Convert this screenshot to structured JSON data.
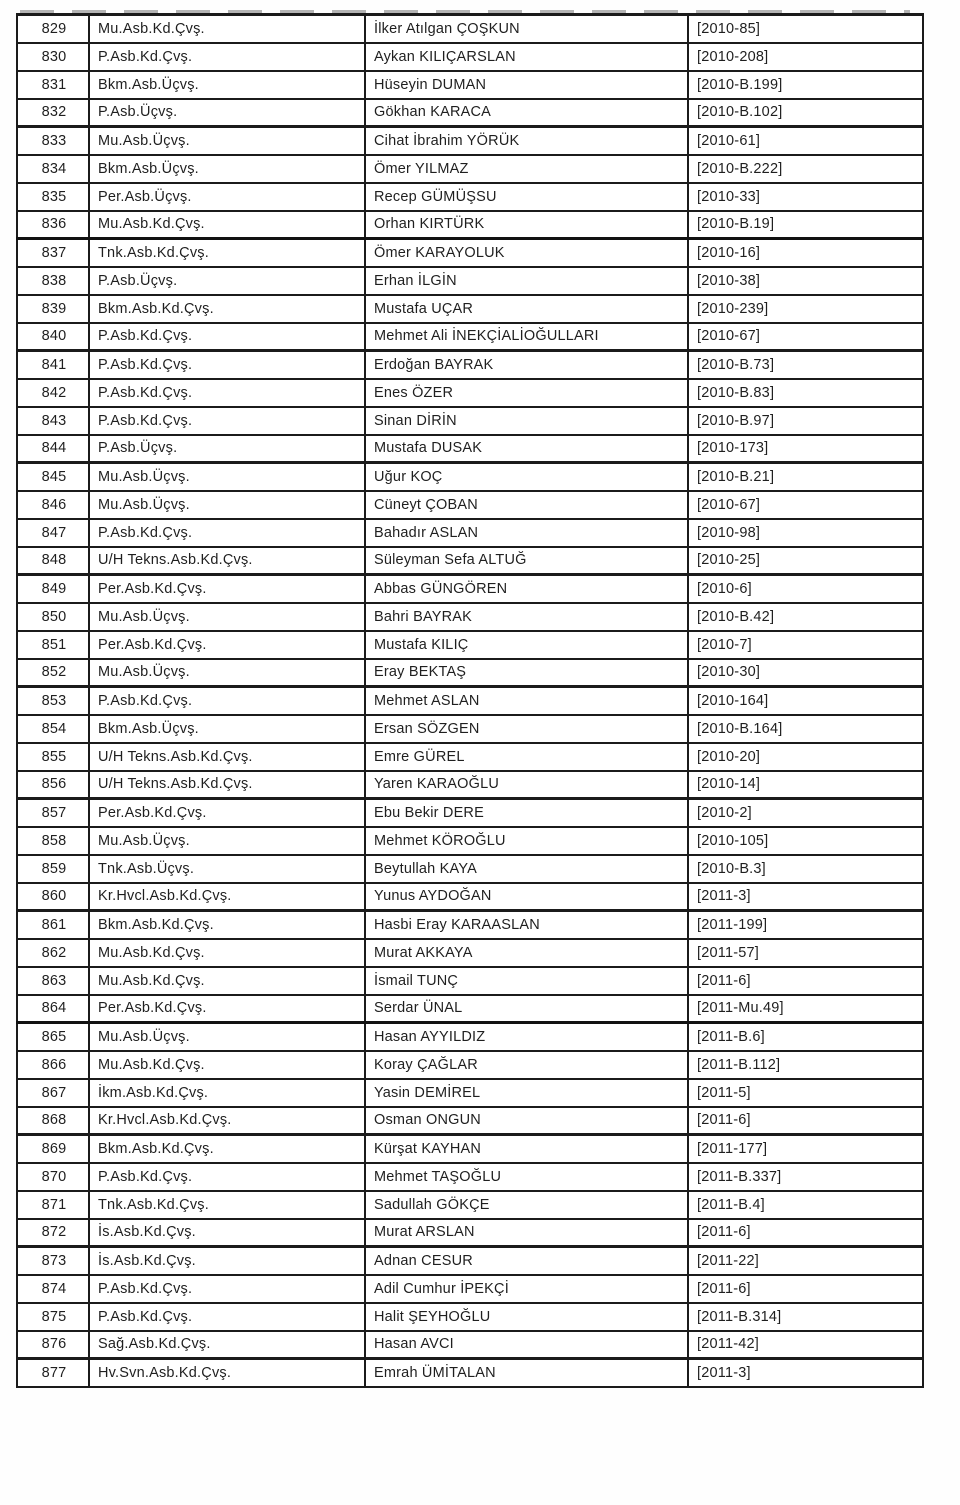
{
  "page": {
    "background_color": "#fefefe",
    "ink_color": "#1f1f1f",
    "border_color": "#1b1b1b"
  },
  "table": {
    "rows": [
      {
        "no": "829",
        "rank": "Mu.Asb.Kd.Çvş.",
        "name": "İlker Atılgan ÇOŞKUN",
        "code": "[2010-85]"
      },
      {
        "no": "830",
        "rank": "P.Asb.Kd.Çvş.",
        "name": "Aykan KILIÇARSLAN",
        "code": "[2010-208]"
      },
      {
        "no": "831",
        "rank": "Bkm.Asb.Üçvş.",
        "name": "Hüseyin DUMAN",
        "code": "[2010-B.199]"
      },
      {
        "no": "832",
        "rank": "P.Asb.Üçvş.",
        "name": "Gökhan KARACA",
        "code": "[2010-B.102]"
      },
      {
        "no": "833",
        "rank": "Mu.Asb.Üçvş.",
        "name": "Cihat İbrahim YÖRÜK",
        "code": "[2010-61]"
      },
      {
        "no": "834",
        "rank": "Bkm.Asb.Üçvş.",
        "name": "Ömer YILMAZ",
        "code": "[2010-B.222]"
      },
      {
        "no": "835",
        "rank": "Per.Asb.Üçvş.",
        "name": "Recep GÜMÜŞSU",
        "code": "[2010-33]"
      },
      {
        "no": "836",
        "rank": "Mu.Asb.Kd.Çvş.",
        "name": "Orhan KIRTÜRK",
        "code": "[2010-B.19]"
      },
      {
        "no": "837",
        "rank": "Tnk.Asb.Kd.Çvş.",
        "name": "Ömer KARAYOLUK",
        "code": "[2010-16]"
      },
      {
        "no": "838",
        "rank": "P.Asb.Üçvş.",
        "name": "Erhan İLGİN",
        "code": "[2010-38]"
      },
      {
        "no": "839",
        "rank": "Bkm.Asb.Kd.Çvş.",
        "name": "Mustafa UÇAR",
        "code": "[2010-239]"
      },
      {
        "no": "840",
        "rank": "P.Asb.Kd.Çvş.",
        "name": "Mehmet Ali İNEKÇİALİOĞULLARI",
        "code": "[2010-67]"
      },
      {
        "no": "841",
        "rank": "P.Asb.Kd.Çvş.",
        "name": "Erdoğan BAYRAK",
        "code": "[2010-B.73]"
      },
      {
        "no": "842",
        "rank": "P.Asb.Kd.Çvş.",
        "name": "Enes ÖZER",
        "code": "[2010-B.83]"
      },
      {
        "no": "843",
        "rank": "P.Asb.Kd.Çvş.",
        "name": "Sinan DİRİN",
        "code": "[2010-B.97]"
      },
      {
        "no": "844",
        "rank": "P.Asb.Üçvş.",
        "name": "Mustafa DUSAK",
        "code": "[2010-173]"
      },
      {
        "no": "845",
        "rank": "Mu.Asb.Üçvş.",
        "name": "Uğur KOÇ",
        "code": "[2010-B.21]"
      },
      {
        "no": "846",
        "rank": "Mu.Asb.Üçvş.",
        "name": "Cüneyt ÇOBAN",
        "code": "[2010-67]"
      },
      {
        "no": "847",
        "rank": "P.Asb.Kd.Çvş.",
        "name": "Bahadır ASLAN",
        "code": "[2010-98]"
      },
      {
        "no": "848",
        "rank": "U/H Tekns.Asb.Kd.Çvş.",
        "name": "Süleyman Sefa ALTUĞ",
        "code": "[2010-25]"
      },
      {
        "no": "849",
        "rank": "Per.Asb.Kd.Çvş.",
        "name": "Abbas GÜNGÖREN",
        "code": "[2010-6]"
      },
      {
        "no": "850",
        "rank": "Mu.Asb.Üçvş.",
        "name": "Bahri BAYRAK",
        "code": "[2010-B.42]"
      },
      {
        "no": "851",
        "rank": "Per.Asb.Kd.Çvş.",
        "name": "Mustafa KILIÇ",
        "code": "[2010-7]"
      },
      {
        "no": "852",
        "rank": "Mu.Asb.Üçvş.",
        "name": "Eray BEKTAŞ",
        "code": "[2010-30]"
      },
      {
        "no": "853",
        "rank": "P.Asb.Kd.Çvş.",
        "name": "Mehmet ASLAN",
        "code": "[2010-164]"
      },
      {
        "no": "854",
        "rank": "Bkm.Asb.Üçvş.",
        "name": "Ersan SÖZGEN",
        "code": "[2010-B.164]"
      },
      {
        "no": "855",
        "rank": "U/H Tekns.Asb.Kd.Çvş.",
        "name": "Emre GÜREL",
        "code": "[2010-20]"
      },
      {
        "no": "856",
        "rank": "U/H Tekns.Asb.Kd.Çvş.",
        "name": "Yaren KARAOĞLU",
        "code": "[2010-14]"
      },
      {
        "no": "857",
        "rank": "Per.Asb.Kd.Çvş.",
        "name": "Ebu Bekir DERE",
        "code": "[2010-2]"
      },
      {
        "no": "858",
        "rank": "Mu.Asb.Üçvş.",
        "name": "Mehmet KÖROĞLU",
        "code": "[2010-105]"
      },
      {
        "no": "859",
        "rank": "Tnk.Asb.Üçvş.",
        "name": "Beytullah KAYA",
        "code": "[2010-B.3]"
      },
      {
        "no": "860",
        "rank": "Kr.Hvcl.Asb.Kd.Çvş.",
        "name": "Yunus AYDOĞAN",
        "code": "[2011-3]"
      },
      {
        "no": "861",
        "rank": "Bkm.Asb.Kd.Çvş.",
        "name": "Hasbi Eray KARAASLAN",
        "code": "[2011-199]"
      },
      {
        "no": "862",
        "rank": "Mu.Asb.Kd.Çvş.",
        "name": "Murat AKKAYA",
        "code": "[2011-57]"
      },
      {
        "no": "863",
        "rank": "Mu.Asb.Kd.Çvş.",
        "name": "İsmail TUNÇ",
        "code": "[2011-6]"
      },
      {
        "no": "864",
        "rank": "Per.Asb.Kd.Çvş.",
        "name": "Serdar ÜNAL",
        "code": "[2011-Mu.49]"
      },
      {
        "no": "865",
        "rank": "Mu.Asb.Üçvş.",
        "name": "Hasan AYYILDIZ",
        "code": "[2011-B.6]"
      },
      {
        "no": "866",
        "rank": "Mu.Asb.Kd.Çvş.",
        "name": "Koray ÇAĞLAR",
        "code": "[2011-B.112]"
      },
      {
        "no": "867",
        "rank": "İkm.Asb.Kd.Çvş.",
        "name": "Yasin DEMİREL",
        "code": "[2011-5]"
      },
      {
        "no": "868",
        "rank": "Kr.Hvcl.Asb.Kd.Çvş.",
        "name": "Osman ONGUN",
        "code": "[2011-6]"
      },
      {
        "no": "869",
        "rank": "Bkm.Asb.Kd.Çvş.",
        "name": "Kürşat KAYHAN",
        "code": "[2011-177]"
      },
      {
        "no": "870",
        "rank": "P.Asb.Kd.Çvş.",
        "name": "Mehmet TAŞOĞLU",
        "code": "[2011-B.337]"
      },
      {
        "no": "871",
        "rank": "Tnk.Asb.Kd.Çvş.",
        "name": "Sadullah GÖKÇE",
        "code": "[2011-B.4]"
      },
      {
        "no": "872",
        "rank": "İs.Asb.Kd.Çvş.",
        "name": "Murat ARSLAN",
        "code": "[2011-6]"
      },
      {
        "no": "873",
        "rank": "İs.Asb.Kd.Çvş.",
        "name": "Adnan CESUR",
        "code": "[2011-22]"
      },
      {
        "no": "874",
        "rank": "P.Asb.Kd.Çvş.",
        "name": "Adil Cumhur İPEKÇİ",
        "code": "[2011-6]"
      },
      {
        "no": "875",
        "rank": "P.Asb.Kd.Çvş.",
        "name": "Halit ŞEYHOĞLU",
        "code": "[2011-B.314]"
      },
      {
        "no": "876",
        "rank": "Sağ.Asb.Kd.Çvş.",
        "name": "Hasan AVCI",
        "code": "[2011-42]"
      },
      {
        "no": "877",
        "rank": "Hv.Svn.Asb.Kd.Çvş.",
        "name": "Emrah ÜMİTALAN",
        "code": "[2011-3]"
      }
    ]
  }
}
